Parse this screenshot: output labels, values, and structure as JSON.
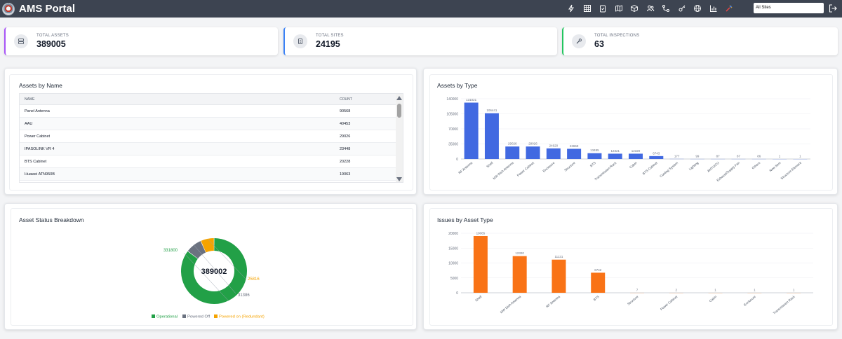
{
  "app": {
    "title": "AMS Portal"
  },
  "nav": {
    "icons": [
      "bolt-icon",
      "grid-icon",
      "clipboard-icon",
      "map-icon",
      "box-icon",
      "users-icon",
      "route-icon",
      "key-icon",
      "globe-icon",
      "bar-chart-icon",
      "tools-icon"
    ],
    "site_select_value": "All Sites"
  },
  "kpis": [
    {
      "label": "TOTAL ASSETS",
      "value": "389005",
      "accent": "#a855f7",
      "icon": "server-icon"
    },
    {
      "label": "TOTAL SITES",
      "value": "24195",
      "accent": "#3b82f6",
      "icon": "building-icon"
    },
    {
      "label": "TOTAL INSPECTIONS",
      "value": "63",
      "accent": "#22c55e",
      "icon": "wrench-icon"
    }
  ],
  "assets_by_name": {
    "title": "Assets by Name",
    "columns": {
      "name": "NAME",
      "count": "COUNT"
    },
    "rows": [
      {
        "name": "Panel Antenna",
        "count": "90568"
      },
      {
        "name": "AAU",
        "count": "40453"
      },
      {
        "name": "Power Cabinet",
        "count": "29026"
      },
      {
        "name": "IPASOLINK VR 4",
        "count": "23448"
      },
      {
        "name": "BTS Cabinet",
        "count": "20228"
      },
      {
        "name": "Huawei ATN950B",
        "count": "19063"
      }
    ]
  },
  "assets_by_type": {
    "title": "Assets by Type"
  },
  "asset_status": {
    "title": "Asset Status Breakdown"
  },
  "issues_by_type": {
    "title": "Issues by Asset Type"
  },
  "chart_data": [
    {
      "type": "bar",
      "title": "Assets by Type",
      "categories": [
        "RF Antenna",
        "Shelf",
        "MW Dish Antenna",
        "Power Cabinet",
        "Enclosure",
        "Structure",
        "BTS",
        "Transmission Rack",
        "Cabin",
        "BTS Cabinet",
        "Cooling System",
        "Lighting",
        "ANTU/CU",
        "Exhaust/Supply Fan",
        "Others",
        "New Item",
        "Structure Element"
      ],
      "values": [
        131021,
        106441,
        29026,
        29026,
        24620,
        23659,
        13485,
        12321,
        12320,
        6743,
        177,
        99,
        87,
        87,
        86,
        1,
        1
      ],
      "value_labels": [
        "131021",
        "106441",
        "29026",
        "29026",
        "24620",
        "23659",
        "13485",
        "12321",
        "12320",
        "6743",
        "177",
        "99",
        "87",
        "87",
        "86",
        "1",
        "1"
      ],
      "yticks": [
        "0",
        "35000",
        "70000",
        "105000",
        "140000"
      ],
      "ylim": [
        0,
        140000
      ],
      "color": "#4169e1"
    },
    {
      "type": "pie",
      "title": "Asset Status Breakdown",
      "center_label": "389002",
      "slices": [
        {
          "name": "Operational",
          "value": 331800,
          "label": "331800",
          "color": "#22a047"
        },
        {
          "name": "Powered Off",
          "value": 31386,
          "label": "31386",
          "color": "#6b7280"
        },
        {
          "name": "Powered on (Redundant)",
          "value": 25816,
          "label": "25816",
          "color": "#f5a300"
        }
      ]
    },
    {
      "type": "bar",
      "title": "Issues by Asset Type",
      "categories": [
        "Shelf",
        "MW Dish Antenna",
        "RF Antenna",
        "BTS",
        "Structure",
        "Power Cabinet",
        "Cabin",
        "Enclosure",
        "Transmission Rack"
      ],
      "values": [
        19065,
        12320,
        11131,
        6742,
        7,
        2,
        1,
        1,
        1
      ],
      "value_labels": [
        "19065",
        "12320",
        "11131",
        "6742",
        "7",
        "2",
        "1",
        "1",
        "1"
      ],
      "yticks": [
        "0",
        "5000",
        "10000",
        "15000",
        "20000"
      ],
      "ylim": [
        0,
        20000
      ],
      "color": "#f97316"
    }
  ]
}
